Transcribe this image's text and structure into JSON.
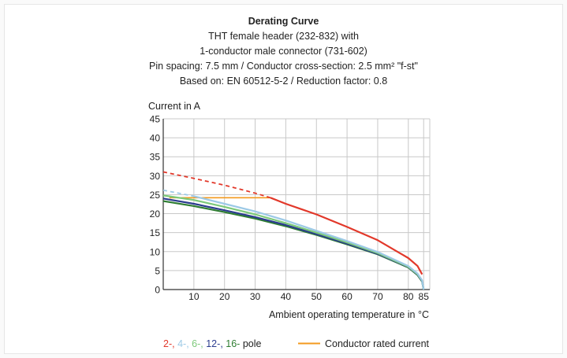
{
  "chart_data": {
    "type": "line",
    "title": "Derating Curve",
    "subtitle": [
      "THT female header (232-832) with",
      "1-conductor male connector  (731-602)",
      "Pin spacing: 7.5 mm / Conductor cross-section: 2.5 mm² \"f-st\"",
      "Based on: EN 60512-5-2 / Reduction factor: 0.8"
    ],
    "ylabel": "Current in A",
    "xlabel": "Ambient operating temperature in °C",
    "xlim": [
      0,
      87
    ],
    "ylim": [
      0,
      45
    ],
    "x_ticks": [
      10,
      20,
      30,
      40,
      50,
      60,
      70,
      80,
      85
    ],
    "y_ticks": [
      0,
      5,
      10,
      15,
      20,
      25,
      30,
      35,
      40,
      45
    ],
    "grid": true,
    "series": [
      {
        "name": "2-",
        "color": "#e2382a",
        "dashed_points": [
          [
            0,
            31
          ],
          [
            10,
            29.3
          ],
          [
            20,
            27.5
          ],
          [
            30,
            25.4
          ],
          [
            35,
            24.2
          ]
        ],
        "points": [
          [
            35,
            24.2
          ],
          [
            40,
            22.6
          ],
          [
            50,
            19.8
          ],
          [
            60,
            16.5
          ],
          [
            70,
            13.0
          ],
          [
            80,
            8.3
          ],
          [
            83,
            6.2
          ],
          [
            84.5,
            4.0
          ]
        ]
      },
      {
        "name": "4-",
        "color": "#9cc9e6",
        "dashed_points": [
          [
            0,
            26.2
          ],
          [
            10,
            24.6
          ]
        ],
        "points": [
          [
            10,
            24.6
          ],
          [
            20,
            22.6
          ],
          [
            30,
            20.6
          ],
          [
            40,
            18.2
          ],
          [
            50,
            15.5
          ],
          [
            60,
            12.8
          ],
          [
            70,
            9.9
          ],
          [
            80,
            6.2
          ],
          [
            83,
            4.2
          ],
          [
            84.5,
            2.4
          ],
          [
            85,
            0
          ]
        ]
      },
      {
        "name": "6-",
        "color": "#7cc97a",
        "points": [
          [
            0,
            24.8
          ],
          [
            10,
            23.6
          ],
          [
            20,
            21.8
          ],
          [
            30,
            19.8
          ],
          [
            40,
            17.5
          ],
          [
            50,
            15.0
          ],
          [
            60,
            12.4
          ],
          [
            70,
            9.6
          ],
          [
            80,
            6.0
          ],
          [
            83,
            4.0
          ],
          [
            84.5,
            2.3
          ],
          [
            85,
            0
          ]
        ]
      },
      {
        "name": "12-",
        "color": "#2b3c8f",
        "points": [
          [
            0,
            24.0
          ],
          [
            10,
            22.6
          ],
          [
            20,
            20.9
          ],
          [
            30,
            19.1
          ],
          [
            40,
            17.0
          ],
          [
            50,
            14.6
          ],
          [
            60,
            12.1
          ],
          [
            70,
            9.4
          ],
          [
            80,
            5.9
          ],
          [
            83,
            3.9
          ],
          [
            84.5,
            2.2
          ],
          [
            85,
            0
          ]
        ]
      },
      {
        "name": "16-",
        "color": "#2e7d32",
        "points": [
          [
            0,
            23.3
          ],
          [
            10,
            22.0
          ],
          [
            20,
            20.4
          ],
          [
            30,
            18.7
          ],
          [
            40,
            16.7
          ],
          [
            50,
            14.4
          ],
          [
            60,
            11.9
          ],
          [
            70,
            9.3
          ],
          [
            80,
            5.8
          ],
          [
            83,
            3.8
          ],
          [
            84.5,
            2.1
          ],
          [
            85,
            0
          ]
        ]
      }
    ],
    "rated_current": {
      "name": "Conductor rated current",
      "color": "#f39a1e",
      "points": [
        [
          2,
          24.2
        ],
        [
          35,
          24.2
        ]
      ]
    },
    "legend": {
      "placement": "bottom",
      "pole_parts": [
        {
          "text": "2-",
          "color": "#e2382a"
        },
        {
          "text": ", ",
          "color": "#e2382a"
        },
        {
          "text": "4-",
          "color": "#9cc9e6"
        },
        {
          "text": ", ",
          "color": "#9cc9e6"
        },
        {
          "text": "6-",
          "color": "#7cc97a"
        },
        {
          "text": ", ",
          "color": "#7cc97a"
        },
        {
          "text": "12-",
          "color": "#2b3c8f"
        },
        {
          "text": ", ",
          "color": "#2b3c8f"
        },
        {
          "text": "16-",
          "color": "#2e7d32"
        },
        {
          "text": " pole",
          "color": "#222222"
        }
      ],
      "rated_label": "Conductor rated current"
    },
    "colors": {
      "grid": "#c8c8c8",
      "axis": "#333333",
      "text": "#222222",
      "background": "#ffffff"
    }
  }
}
